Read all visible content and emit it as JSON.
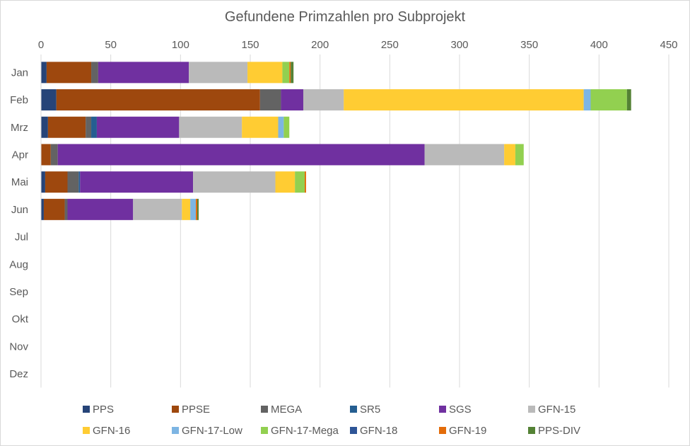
{
  "chart_data": {
    "type": "bar",
    "orientation": "horizontal",
    "stacked": true,
    "title": "Gefundene Primzahlen pro Subprojekt",
    "xlabel": "",
    "ylabel": "",
    "xlim": [
      0,
      450
    ],
    "xticks": [
      0,
      50,
      100,
      150,
      200,
      250,
      300,
      350,
      400,
      450
    ],
    "x_axis_position": "top",
    "grid": "vertical",
    "legend_position": "bottom",
    "categories": [
      "Jan",
      "Feb",
      "Mrz",
      "Apr",
      "Mai",
      "Jun",
      "Jul",
      "Aug",
      "Sep",
      "Okt",
      "Nov",
      "Dez"
    ],
    "series": [
      {
        "name": "PPS",
        "color": "#264478",
        "values": [
          4,
          11,
          5,
          0,
          3,
          2,
          0,
          0,
          0,
          0,
          0,
          0
        ]
      },
      {
        "name": "PPSE",
        "color": "#9e480e",
        "values": [
          32,
          146,
          27,
          7,
          16,
          15,
          0,
          0,
          0,
          0,
          0,
          0
        ]
      },
      {
        "name": "MEGA",
        "color": "#636363",
        "values": [
          5,
          15,
          4,
          5,
          8,
          2,
          0,
          0,
          0,
          0,
          0,
          0
        ]
      },
      {
        "name": "SR5",
        "color": "#255e91",
        "values": [
          0,
          0,
          4,
          0,
          1,
          0,
          0,
          0,
          0,
          0,
          0,
          0
        ]
      },
      {
        "name": "SGS",
        "color": "#7030a0",
        "values": [
          65,
          16,
          59,
          263,
          81,
          47,
          0,
          0,
          0,
          0,
          0,
          0
        ]
      },
      {
        "name": "GFN-15",
        "color": "#bababa",
        "values": [
          42,
          29,
          45,
          57,
          59,
          35,
          0,
          0,
          0,
          0,
          0,
          0
        ]
      },
      {
        "name": "GFN-16",
        "color": "#ffcc33",
        "values": [
          25,
          172,
          26,
          8,
          14,
          6,
          0,
          0,
          0,
          0,
          0,
          0
        ]
      },
      {
        "name": "GFN-17-Low",
        "color": "#7db5e3",
        "values": [
          0,
          5,
          4,
          0,
          0,
          4,
          0,
          0,
          0,
          0,
          0,
          0
        ]
      },
      {
        "name": "GFN-17-Mega",
        "color": "#92d050",
        "values": [
          5,
          26,
          4,
          6,
          7,
          0,
          0,
          0,
          0,
          0,
          0,
          0
        ]
      },
      {
        "name": "GFN-18",
        "color": "#2e5597",
        "values": [
          0,
          0,
          0,
          0,
          0,
          0,
          0,
          0,
          0,
          0,
          0,
          0
        ]
      },
      {
        "name": "GFN-19",
        "color": "#e36c0a",
        "values": [
          1,
          0,
          0,
          0,
          1,
          1,
          0,
          0,
          0,
          0,
          0,
          0
        ]
      },
      {
        "name": "PPS-DIV",
        "color": "#548235",
        "values": [
          2,
          3,
          0,
          0,
          0,
          1,
          0,
          0,
          0,
          0,
          0,
          0
        ]
      }
    ]
  }
}
